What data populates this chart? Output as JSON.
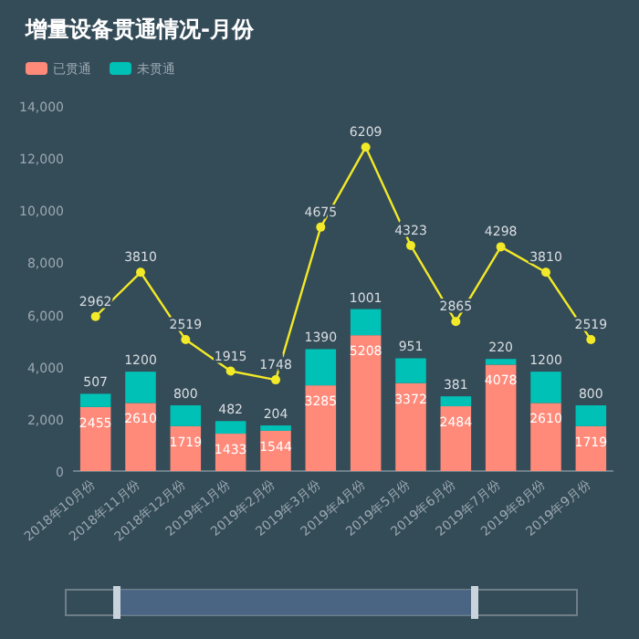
{
  "chart_data": {
    "type": "bar",
    "title": "增量设备贯通情况-月份",
    "stacked": true,
    "data_labels": true,
    "legend": "top left",
    "grid": false,
    "categories": [
      "2018年10月份",
      "2018年11月份",
      "2018年12月份",
      "2019年1月份",
      "2019年2月份",
      "2019年3月份",
      "2019年4月份",
      "2019年5月份",
      "2019年6月份",
      "2019年7月份",
      "2019年8月份",
      "2019年9月份"
    ],
    "ylim": [
      0,
      14000
    ],
    "yticks": [
      {
        "value": 0,
        "label": "0"
      },
      {
        "value": 2000,
        "label": "2,000"
      },
      {
        "value": 4000,
        "label": "4,000"
      },
      {
        "value": 6000,
        "label": "6,000"
      },
      {
        "value": 8000,
        "label": "8,000"
      },
      {
        "value": 10000,
        "label": "10,000"
      },
      {
        "value": 12000,
        "label": "12,000"
      },
      {
        "value": 14000,
        "label": "14,000"
      }
    ],
    "series": [
      {
        "name": "已贯通",
        "color": "#ff8a7a",
        "values": [
          2455,
          2610,
          1719,
          1433,
          1544,
          3285,
          5208,
          3372,
          2484,
          4078,
          2610,
          1719
        ]
      },
      {
        "name": "未贯通",
        "color": "#00c1b6",
        "values": [
          507,
          1200,
          800,
          482,
          204,
          1390,
          1001,
          951,
          381,
          220,
          1200,
          800
        ]
      },
      {
        "type": "line",
        "axis": "y2",
        "color": "#f2e928",
        "marker": "circle",
        "values": [
          2962,
          3810,
          2519,
          1915,
          1748,
          4675,
          6209,
          4323,
          2865,
          4298,
          3810,
          2519
        ]
      }
    ]
  }
}
